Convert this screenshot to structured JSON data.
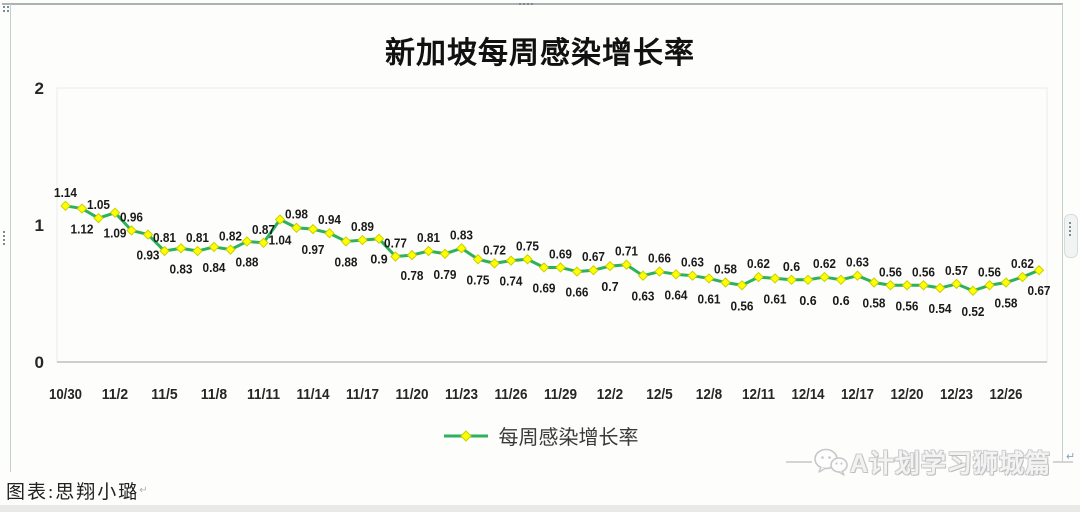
{
  "page": {
    "caption": "图表:思翔小璐",
    "return_mark": "↵",
    "watermark": {
      "text": "A计划学习狮城篇",
      "icon": "wechat-icon"
    }
  },
  "chart_data": {
    "type": "line",
    "title": "新加坡每周感染增长率",
    "xlabel": "",
    "ylabel": "",
    "ylim": [
      0,
      2
    ],
    "yticks": [
      0,
      1,
      2
    ],
    "grid": false,
    "legend_position": "bottom",
    "data_labels": "alternate-above-below",
    "points_per_tick": 3,
    "x_tick_labels": [
      "10/30",
      "11/2",
      "11/5",
      "11/8",
      "11/11",
      "11/14",
      "11/17",
      "11/20",
      "11/23",
      "11/26",
      "11/29",
      "12/2",
      "12/5",
      "12/8",
      "12/11",
      "12/14",
      "12/17",
      "12/20",
      "12/23",
      "12/26"
    ],
    "series": [
      {
        "name": "每周感染增长率",
        "values": [
          1.14,
          1.12,
          1.05,
          1.09,
          0.96,
          0.93,
          0.81,
          0.83,
          0.81,
          0.84,
          0.82,
          0.88,
          0.87,
          1.04,
          0.98,
          0.97,
          0.94,
          0.88,
          0.89,
          0.9,
          0.77,
          0.78,
          0.81,
          0.79,
          0.83,
          0.75,
          0.72,
          0.74,
          0.75,
          0.69,
          0.69,
          0.66,
          0.67,
          0.7,
          0.71,
          0.63,
          0.66,
          0.64,
          0.63,
          0.61,
          0.58,
          0.56,
          0.62,
          0.61,
          0.6,
          0.6,
          0.62,
          0.6,
          0.63,
          0.58,
          0.56,
          0.56,
          0.56,
          0.54,
          0.57,
          0.52,
          0.56,
          0.58,
          0.62,
          0.67
        ]
      }
    ],
    "colors": {
      "line": "#2eb15c",
      "marker_fill": "#ffff00",
      "marker_stroke": "#c9cf00",
      "label_text": "#1a1a1a",
      "tick_text": "#262626",
      "axis": "#bfbfbf",
      "plot_border": "#ececec"
    }
  }
}
